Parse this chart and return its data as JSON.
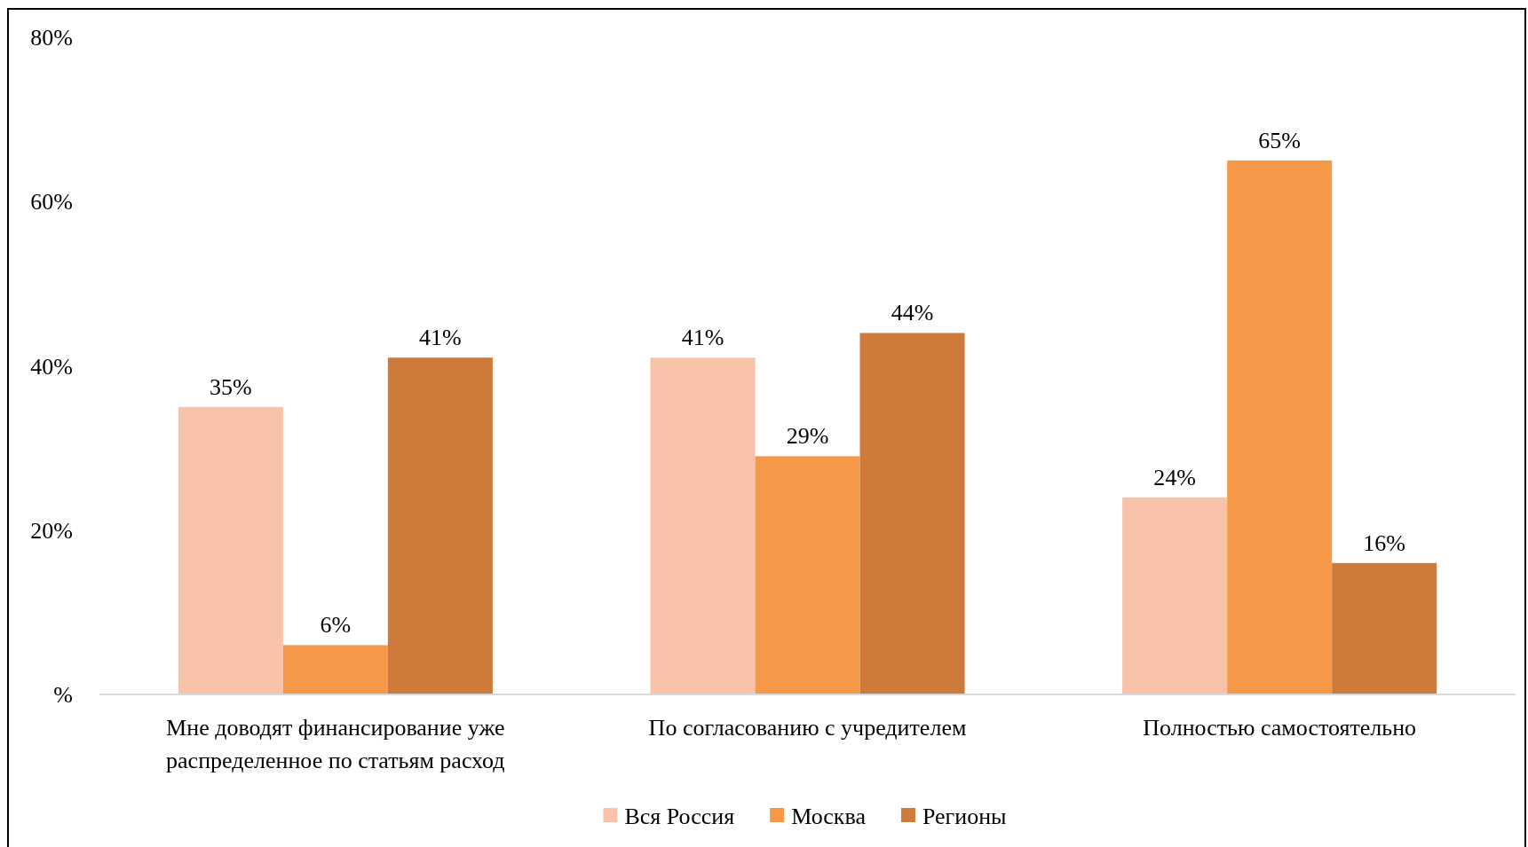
{
  "chart_data": {
    "type": "bar",
    "categories": [
      "Мне доводят финансирование уже распределенное по статьям расход",
      "По согласованию с учредителем",
      "Полностью самостоятельно"
    ],
    "series": [
      {
        "name": "Вся Россия",
        "color": "#f8c3a9",
        "values": [
          35,
          41,
          24
        ],
        "value_labels": [
          "35%",
          "41%",
          "24%"
        ]
      },
      {
        "name": "Москва",
        "color": "#f59847",
        "values": [
          6,
          29,
          65
        ],
        "value_labels": [
          "6%",
          "29%",
          "65%"
        ]
      },
      {
        "name": "Регионы",
        "color": "#cd7a3a",
        "values": [
          41,
          44,
          16
        ],
        "value_labels": [
          "41%",
          "44%",
          "16%"
        ]
      }
    ],
    "ylim": [
      0,
      80
    ],
    "yticks": [
      {
        "value": 0,
        "label": "%"
      },
      {
        "value": 20,
        "label": "20%"
      },
      {
        "value": 40,
        "label": "40%"
      },
      {
        "value": 60,
        "label": "60%"
      },
      {
        "value": 80,
        "label": "80%"
      }
    ],
    "grid": false,
    "legend": "bottom"
  }
}
